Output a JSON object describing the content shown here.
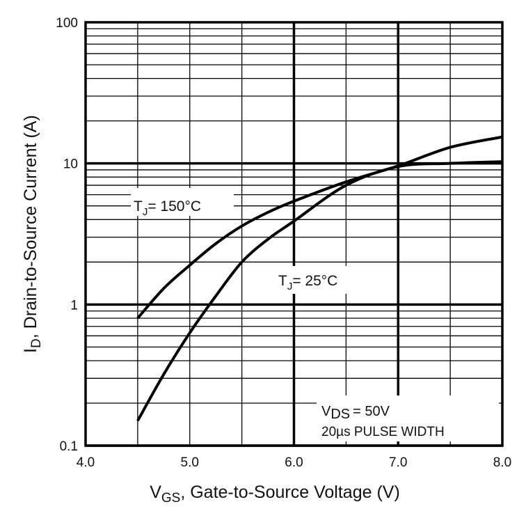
{
  "chart_data": {
    "type": "line",
    "title": "",
    "xlabel": "V_GS, Gate-to-Source Voltage (V)",
    "xlabel_parts": {
      "main": "V",
      "sub": "GS",
      "rest": ", Gate-to-Source Voltage (V)"
    },
    "ylabel": "I_D, Drain-to-Source Current (A)",
    "ylabel_parts": {
      "main": "I",
      "sub": "D",
      "rest": ",  Drain-to-Source Current (A)"
    },
    "xlim": [
      4.0,
      8.0
    ],
    "ylim": [
      0.1,
      100
    ],
    "yscale": "log",
    "grid": true,
    "xticks": [
      4.0,
      5.0,
      6.0,
      7.0,
      8.0
    ],
    "xtick_labels": [
      "4.0",
      "5.0",
      "6.0",
      "7.0",
      "8.0"
    ],
    "yticks": [
      0.1,
      1,
      10,
      100
    ],
    "ytick_labels": [
      "0.1",
      "1",
      "10",
      "100"
    ],
    "series": [
      {
        "name": "T_J = 150°C",
        "label_parts": {
          "main": "T",
          "sub": "J",
          "rest": "= 150°C"
        },
        "x": [
          4.5,
          4.75,
          5.0,
          5.25,
          5.5,
          5.75,
          6.0,
          6.5,
          7.0,
          7.5,
          8.0
        ],
        "y": [
          0.8,
          1.3,
          1.9,
          2.7,
          3.6,
          4.5,
          5.4,
          7.4,
          9.6,
          13.0,
          15.4
        ]
      },
      {
        "name": "T_J = 25°C",
        "label_parts": {
          "main": "T",
          "sub": "J",
          "rest": "= 25°C"
        },
        "x": [
          4.5,
          4.75,
          5.0,
          5.25,
          5.5,
          5.75,
          6.0,
          6.5,
          7.0,
          7.5,
          8.0
        ],
        "y": [
          0.15,
          0.32,
          0.63,
          1.15,
          2.0,
          2.9,
          3.9,
          7.0,
          9.5,
          10.0,
          10.3
        ]
      }
    ],
    "annotations": {
      "vds_main": "V",
      "vds_sub": "DS",
      "vds_rest": "= 50V",
      "pulse": "20µs PULSE WIDTH"
    },
    "colors": {
      "line": "#000000",
      "grid": "#000000"
    }
  }
}
